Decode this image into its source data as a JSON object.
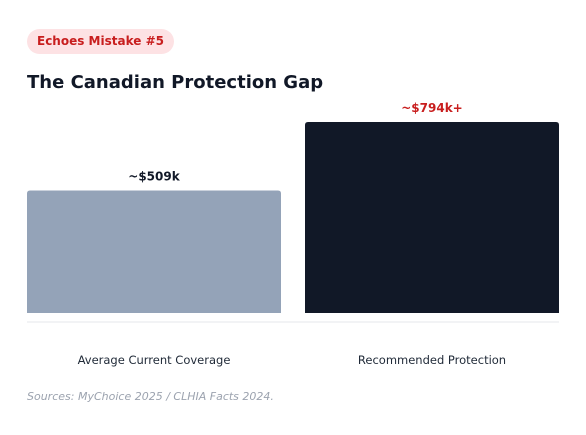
{
  "badge": "Echoes Mistake #5",
  "title": "The Canadian Protection Gap",
  "chart_data": {
    "type": "bar",
    "title": "The Canadian Protection Gap",
    "categories": [
      "Average Current Coverage",
      "Recommended Protection"
    ],
    "values": [
      509,
      794
    ],
    "value_labels": [
      "~$509k",
      "~$794k+"
    ],
    "bar_colors": [
      "#94a3b8",
      "#111827"
    ],
    "label_colors": [
      "#111827",
      "#c81e1e"
    ],
    "ylim": [
      0,
      794
    ],
    "grid": false,
    "legend": "none"
  },
  "source": "Sources: MyChoice 2025 / CLHIA Facts 2024."
}
